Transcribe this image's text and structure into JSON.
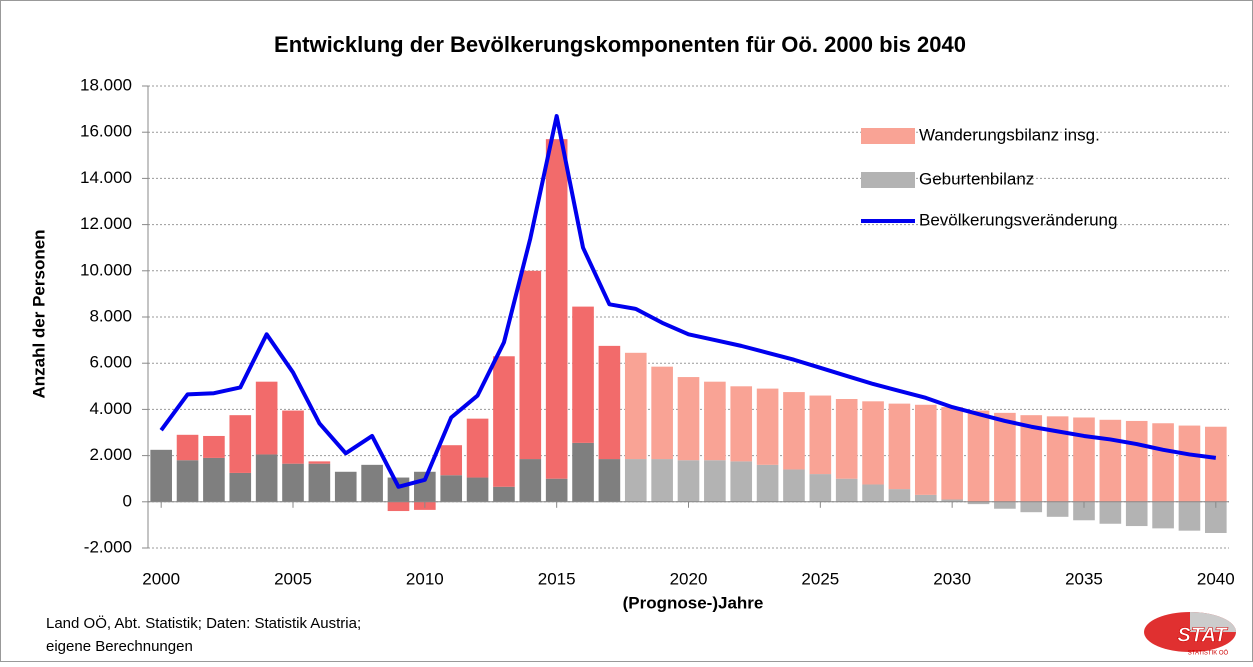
{
  "chart_data": {
    "type": "bar_line",
    "title": "Entwicklung der Bevölkerungskomponenten für Oö. 2000 bis 2040",
    "xlabel": "(Prognose-)Jahre",
    "ylabel": "Anzahl der Personen",
    "source": "Land OÖ, Abt. Statistik; Daten: Statistik Austria; eigene Berechnungen",
    "logo": {
      "text": "STAT",
      "subtext": "STATISTIK OÖ"
    },
    "x": [
      2000,
      2001,
      2002,
      2003,
      2004,
      2005,
      2006,
      2007,
      2008,
      2009,
      2010,
      2011,
      2012,
      2013,
      2014,
      2015,
      2016,
      2017,
      2018,
      2019,
      2020,
      2021,
      2022,
      2023,
      2024,
      2025,
      2026,
      2027,
      2028,
      2029,
      2030,
      2031,
      2032,
      2033,
      2034,
      2035,
      2036,
      2037,
      2038,
      2039,
      2040
    ],
    "xlim": [
      1999.5,
      2040.5
    ],
    "xticks": [
      2000,
      2005,
      2010,
      2015,
      2020,
      2025,
      2030,
      2035,
      2040
    ],
    "ylim": [
      -2000,
      18000
    ],
    "yticks": [
      {
        "value": -2000,
        "label": "-2.000"
      },
      0,
      {
        "value": 2000,
        "label": "2.000"
      },
      {
        "value": 4000,
        "label": "4.000"
      },
      {
        "value": 6000,
        "label": "6.000"
      },
      {
        "value": 8000,
        "label": "8.000"
      },
      {
        "value": 10000,
        "label": "10.000"
      },
      {
        "value": 12000,
        "label": "12.000"
      },
      {
        "value": 14000,
        "label": "14.000"
      },
      {
        "value": 16000,
        "label": "16.000"
      },
      {
        "value": 18000,
        "label": "18.000"
      }
    ],
    "grid": true,
    "series": [
      {
        "name": "Geburtenbilanz",
        "kind": "bar",
        "color": "#b3b3b3",
        "colors": [
          "#7f7f7f",
          "#7f7f7f",
          "#7f7f7f",
          "#7f7f7f",
          "#7f7f7f",
          "#7f7f7f",
          "#7f7f7f",
          "#7f7f7f",
          "#7f7f7f",
          "#7f7f7f",
          "#7f7f7f",
          "#7f7f7f",
          "#7f7f7f",
          "#7f7f7f",
          "#7f7f7f",
          "#7f7f7f",
          "#7f7f7f",
          "#7f7f7f",
          "#b3b3b3",
          "#b3b3b3",
          "#b3b3b3",
          "#b3b3b3",
          "#b3b3b3",
          "#b3b3b3",
          "#b3b3b3",
          "#b3b3b3",
          "#b3b3b3",
          "#b3b3b3",
          "#b3b3b3",
          "#b3b3b3",
          "#b3b3b3",
          "#b3b3b3",
          "#b3b3b3",
          "#b3b3b3",
          "#b3b3b3",
          "#b3b3b3",
          "#b3b3b3",
          "#b3b3b3",
          "#b3b3b3",
          "#b3b3b3",
          "#b3b3b3"
        ],
        "values": [
          2250,
          1800,
          1900,
          1250,
          2050,
          1650,
          1650,
          1300,
          1600,
          1050,
          1300,
          1150,
          1050,
          650,
          1850,
          1000,
          2550,
          1850,
          1850,
          1850,
          1800,
          1800,
          1750,
          1600,
          1400,
          1200,
          1000,
          750,
          550,
          300,
          100,
          -100,
          -300,
          -450,
          -650,
          -800,
          -950,
          -1050,
          -1150,
          -1250,
          -1350
        ]
      },
      {
        "name": "Wanderungsbilanz insg.",
        "kind": "bar",
        "color": "#f9a395",
        "colors": [
          "#f26b6b",
          "#f26b6b",
          "#f26b6b",
          "#f26b6b",
          "#f26b6b",
          "#f26b6b",
          "#f26b6b",
          "#f26b6b",
          "#f26b6b",
          "#f26b6b",
          "#f26b6b",
          "#f26b6b",
          "#f26b6b",
          "#f26b6b",
          "#f26b6b",
          "#f26b6b",
          "#f26b6b",
          "#f26b6b",
          "#f9a395",
          "#f9a395",
          "#f9a395",
          "#f9a395",
          "#f9a395",
          "#f9a395",
          "#f9a395",
          "#f9a395",
          "#f9a395",
          "#f9a395",
          "#f9a395",
          "#f9a395",
          "#f9a395",
          "#f9a395",
          "#f9a395",
          "#f9a395",
          "#f9a395",
          "#f9a395",
          "#f9a395",
          "#f9a395",
          "#f9a395",
          "#f9a395",
          "#f9a395"
        ],
        "values": [
          0,
          1100,
          950,
          2500,
          3150,
          2300,
          100,
          0,
          0,
          -400,
          -350,
          1300,
          2550,
          5650,
          8150,
          14700,
          5900,
          4900,
          4600,
          4000,
          3600,
          3400,
          3250,
          3300,
          3350,
          3400,
          3450,
          3600,
          3700,
          3900,
          4000,
          3950,
          3850,
          3750,
          3700,
          3650,
          3550,
          3500,
          3400,
          3300,
          3250
        ]
      },
      {
        "name": "Bevölkerungsveränderung",
        "kind": "line",
        "color": "#0000ee",
        "values": [
          3100,
          4650,
          4700,
          4950,
          7250,
          5600,
          3400,
          2100,
          2850,
          650,
          950,
          3650,
          4600,
          6900,
          11400,
          16700,
          11000,
          8550,
          8350,
          7750,
          7250,
          7000,
          6750,
          6450,
          6150,
          5800,
          5450,
          5100,
          4800,
          4500,
          4100,
          3800,
          3500,
          3250,
          3050,
          2850,
          2700,
          2500,
          2250,
          2050,
          1900
        ]
      }
    ]
  }
}
